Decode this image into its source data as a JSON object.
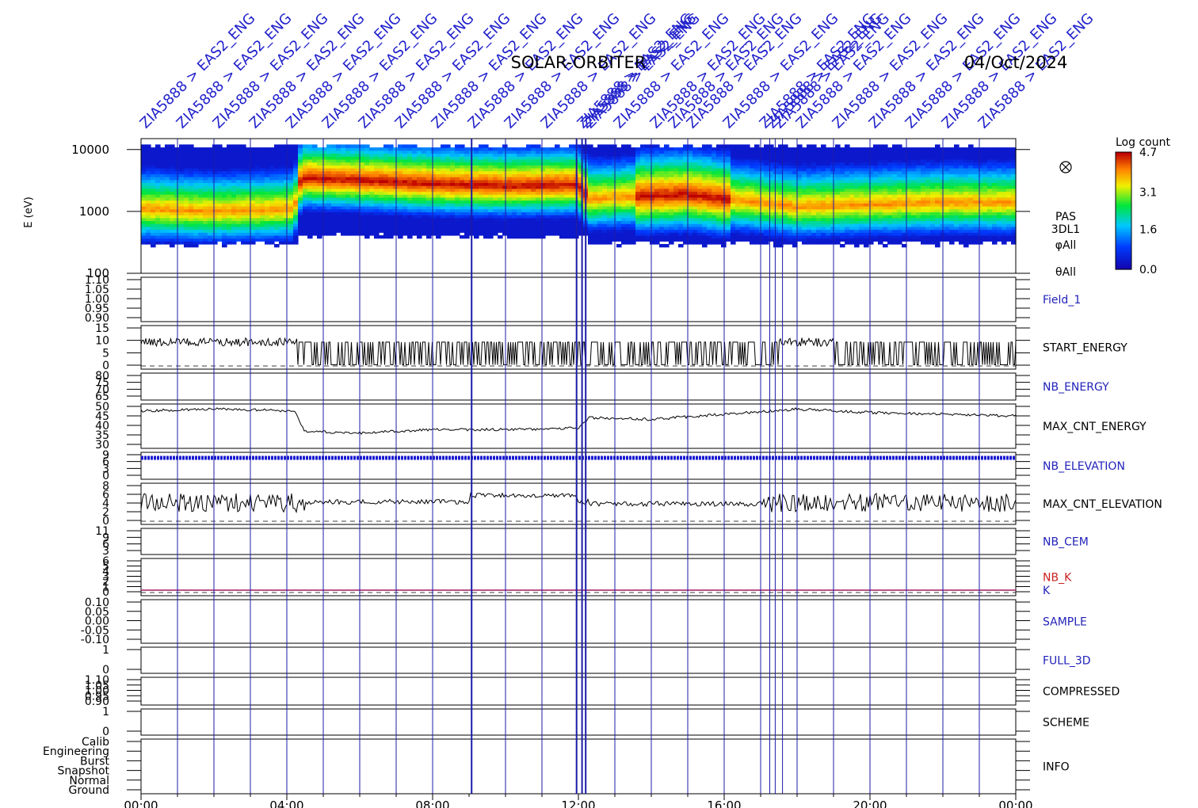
{
  "title": "SOLAR-ORBITER",
  "date": "04/Oct/2024",
  "annotation_text": "ZIA5888 > EAS2_ENG",
  "chart_data": [
    {
      "type": "heatmap",
      "panel": "spectrogram",
      "ylabel": "E (eV)",
      "y_scale": "log",
      "ylim": [
        100,
        15000
      ],
      "yticks": [
        "10000",
        "1000",
        "100"
      ],
      "colorbar": {
        "label": "Log count",
        "ticks": [
          "4.7",
          "3.1",
          "1.6",
          "0.0"
        ],
        "range": [
          0.0,
          4.7
        ]
      },
      "side_labels": [
        "PAS",
        "3DL1",
        "φAll",
        "θAll"
      ],
      "peak_energy_by_hour": [
        {
          "t": 0,
          "e": 1100
        },
        {
          "t": 2,
          "e": 1000
        },
        {
          "t": 4.2,
          "e": 1100
        },
        {
          "t": 4.4,
          "e": 3500
        },
        {
          "t": 6,
          "e": 3200
        },
        {
          "t": 8,
          "e": 2800
        },
        {
          "t": 10,
          "e": 2600
        },
        {
          "t": 12,
          "e": 2700
        },
        {
          "t": 12.3,
          "e": 1600
        },
        {
          "t": 14,
          "e": 1800
        },
        {
          "t": 15,
          "e": 1900
        },
        {
          "t": 16,
          "e": 1600
        },
        {
          "t": 18,
          "e": 1200
        },
        {
          "t": 20,
          "e": 1300
        },
        {
          "t": 22,
          "e": 1400
        },
        {
          "t": 24,
          "e": 1400
        }
      ]
    },
    {
      "type": "line",
      "panel": "Field_1",
      "yticks": [
        "1.10",
        "1.05",
        "1.00",
        "0.95",
        "0.90"
      ],
      "label_color": "#2222bb"
    },
    {
      "type": "line",
      "panel": "START_ENERGY",
      "yticks": [
        "15",
        "10",
        "5",
        "0"
      ],
      "label_color": "#000000"
    },
    {
      "type": "line",
      "panel": "NB_ENERGY",
      "yticks": [
        "80",
        "75",
        "70",
        "65"
      ],
      "label_color": "#2222bb"
    },
    {
      "type": "line",
      "panel": "MAX_CNT_ENERGY",
      "yticks": [
        "50",
        "45",
        "40",
        "35",
        "30"
      ],
      "label_color": "#000000",
      "series": [
        {
          "values_by_hour": [
            {
              "t": 0,
              "v": 50
            },
            {
              "t": 2,
              "v": 51
            },
            {
              "t": 4.2,
              "v": 50
            },
            {
              "t": 4.5,
              "v": 38
            },
            {
              "t": 6,
              "v": 37
            },
            {
              "t": 8,
              "v": 39
            },
            {
              "t": 10,
              "v": 39
            },
            {
              "t": 12,
              "v": 40
            },
            {
              "t": 12.3,
              "v": 46
            },
            {
              "t": 14,
              "v": 45
            },
            {
              "t": 16,
              "v": 48
            },
            {
              "t": 18,
              "v": 51
            },
            {
              "t": 20,
              "v": 49
            },
            {
              "t": 22,
              "v": 48
            },
            {
              "t": 24,
              "v": 47
            }
          ]
        }
      ]
    },
    {
      "type": "line",
      "panel": "NB_ELEVATION",
      "yticks": [
        "9",
        "6",
        "3",
        "0"
      ],
      "label_color": "#2222bb"
    },
    {
      "type": "line",
      "panel": "MAX_CNT_ELEVATION",
      "yticks": [
        "8",
        "6",
        "4",
        "2",
        "0"
      ],
      "label_color": "#000000"
    },
    {
      "type": "line",
      "panel": "NB_CEM",
      "yticks": [
        "11",
        "9",
        "6",
        "3"
      ],
      "label_color": "#2222bb"
    },
    {
      "type": "line",
      "panel": "NB_K",
      "secondary_label": "K",
      "yticks": [
        "6",
        "5",
        "4",
        "3",
        "2",
        "1",
        "0"
      ],
      "label_color": "#cc2222"
    },
    {
      "type": "line",
      "panel": "SAMPLE",
      "yticks": [
        "0.10",
        "0.05",
        "0.00",
        "-0.05",
        "-0.10"
      ],
      "label_color": "#2222bb"
    },
    {
      "type": "line",
      "panel": "FULL_3D",
      "yticks": [
        "1",
        "0"
      ],
      "label_color": "#2222bb"
    },
    {
      "type": "line",
      "panel": "COMPRESSED",
      "yticks": [
        "1.10",
        "1.05",
        "1.00",
        "0.95",
        "0.90"
      ],
      "label_color": "#000000"
    },
    {
      "type": "line",
      "panel": "SCHEME",
      "yticks": [
        "1",
        "0"
      ],
      "label_color": "#000000"
    },
    {
      "type": "line",
      "panel": "INFO",
      "yticks": [
        "Calib",
        "Engineering",
        "Burst",
        "Snapshot",
        "Normal",
        "Ground"
      ],
      "label_color": "#000000"
    }
  ],
  "x_axis": {
    "ticks": [
      "00:00",
      "04:00",
      "08:00",
      "12:00",
      "16:00",
      "20:00",
      "00:00"
    ],
    "range_hours": [
      0,
      24
    ]
  },
  "event_lines_hours": [
    1.0,
    2.0,
    3.0,
    4.0,
    5.0,
    6.0,
    7.0,
    8.0,
    9.07,
    10.0,
    11.0,
    11.95,
    12.1,
    12.2,
    13.0,
    14.0,
    15.0,
    16.0,
    17.0,
    17.25,
    17.4,
    17.6,
    18.0,
    19.0,
    20.0,
    21.0,
    22.0,
    23.0
  ],
  "annotation_hours": [
    0.0,
    1.0,
    2.0,
    3.0,
    4.0,
    5.0,
    6.0,
    7.0,
    8.0,
    9.0,
    10.0,
    11.0,
    12.0,
    12.1,
    12.2,
    13.0,
    14.0,
    14.5,
    15.0,
    16.0,
    17.0,
    17.2,
    17.4,
    18.0,
    19.0,
    20.0,
    21.0,
    22.0,
    23.0
  ]
}
